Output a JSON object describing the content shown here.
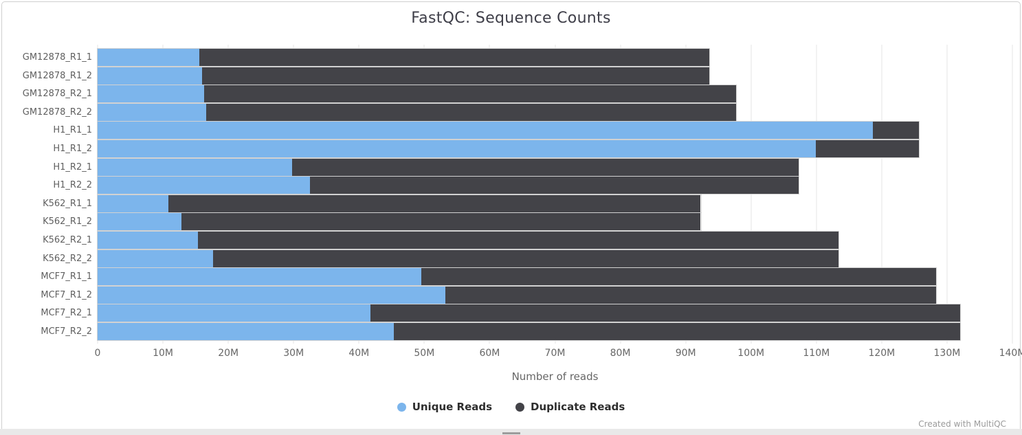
{
  "chart_data": {
    "type": "bar",
    "orientation": "horizontal",
    "stacked": true,
    "title": "FastQC: Sequence Counts",
    "xlabel": "Number of reads",
    "categories": [
      "GM12878_R1_1",
      "GM12878_R1_2",
      "GM12878_R2_1",
      "GM12878_R2_2",
      "H1_R1_1",
      "H1_R1_2",
      "H1_R2_1",
      "H1_R2_2",
      "K562_R1_1",
      "K562_R1_2",
      "K562_R2_1",
      "K562_R2_2",
      "MCF7_R1_1",
      "MCF7_R1_2",
      "MCF7_R2_1",
      "MCF7_R2_2"
    ],
    "series": [
      {
        "name": "Unique Reads",
        "color": "#7cb5ec",
        "values_millions": [
          15.6,
          16.0,
          16.3,
          16.6,
          118.7,
          109.9,
          29.8,
          32.5,
          10.8,
          12.8,
          15.4,
          17.7,
          49.5,
          53.2,
          41.8,
          45.3
        ]
      },
      {
        "name": "Duplicate Reads",
        "color": "#434348",
        "values_millions": [
          78.0,
          77.6,
          81.4,
          81.1,
          7.0,
          15.8,
          77.5,
          74.8,
          81.5,
          79.5,
          98.0,
          95.7,
          78.8,
          75.1,
          90.2,
          86.7
        ]
      }
    ],
    "totals_millions": [
      93.6,
      93.6,
      97.7,
      97.7,
      125.7,
      125.7,
      107.3,
      107.3,
      92.3,
      92.3,
      113.4,
      113.4,
      128.3,
      128.3,
      132.0,
      132.0
    ],
    "xlim_millions": [
      0,
      140
    ],
    "x_tick_interval_millions": 10,
    "x_tick_labels": [
      "0",
      "10M",
      "20M",
      "30M",
      "40M",
      "50M",
      "60M",
      "70M",
      "80M",
      "90M",
      "100M",
      "110M",
      "120M",
      "130M",
      "140M"
    ],
    "grid": "vertical",
    "grid_color": "#e6e6e6",
    "legend_position": "bottom"
  },
  "legend": {
    "items": [
      {
        "label": "Unique Reads",
        "color": "#7cb5ec"
      },
      {
        "label": "Duplicate Reads",
        "color": "#434348"
      }
    ]
  },
  "footer": {
    "credit": "Created with MultiQC"
  }
}
